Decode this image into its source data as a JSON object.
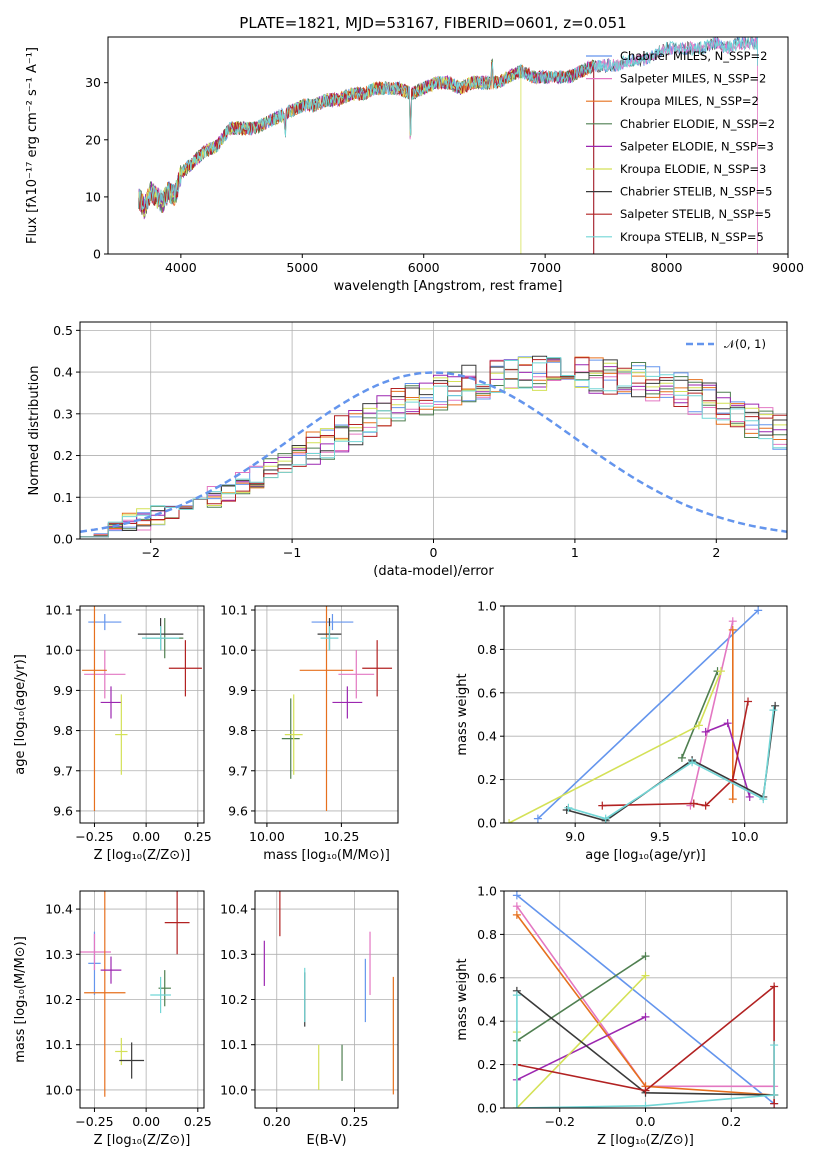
{
  "colors": [
    "#6495ed",
    "#e377c2",
    "#e6701e",
    "#4f7f50",
    "#9c27b0",
    "#d4e157",
    "#3a3a3a",
    "#b22222",
    "#72d6d6"
  ],
  "chart_data": [
    {
      "type": "line",
      "title": "PLATE=1821, MJD=53167, FIBERID=0601, z=0.051",
      "xlabel": "wavelength [Angstrom, rest frame]",
      "ylabel": "Flux [fλ10⁻¹⁷ erg cm⁻² s⁻¹ A⁻¹]",
      "xlim": [
        3400,
        9000
      ],
      "ylim": [
        0,
        38
      ],
      "xticks": [
        "4000",
        "5000",
        "6000",
        "7000",
        "8000",
        "9000"
      ],
      "yticks": [
        "0",
        "10",
        "20",
        "30"
      ],
      "legend": [
        "Chabrier MILES, N_SSP=2",
        "Salpeter MILES, N_SSP=2",
        "Kroupa MILES, N_SSP=2",
        "Chabrier ELODIE, N_SSP=2",
        "Salpeter ELODIE, N_SSP=3",
        "Kroupa ELODIE, N_SSP=3",
        "Chabrier STELIB, N_SSP=5",
        "Salpeter STELIB, N_SSP=5",
        "Kroupa STELIB, N_SSP=5"
      ],
      "series_ranges": [
        [
          3650,
          8750
        ],
        [
          3650,
          8750
        ],
        [
          3650,
          7400
        ],
        [
          3650,
          7400
        ],
        [
          3650,
          7400
        ],
        [
          3650,
          6800
        ],
        [
          3650,
          8750
        ],
        [
          3650,
          7400
        ],
        [
          3650,
          8750
        ]
      ],
      "x": [
        3650,
        3700,
        3750,
        3800,
        3850,
        3900,
        3950,
        4000,
        4100,
        4200,
        4300,
        4400,
        4500,
        4600,
        4700,
        4800,
        4900,
        5000,
        5100,
        5200,
        5300,
        5400,
        5500,
        5600,
        5700,
        5800,
        5900,
        6000,
        6100,
        6200,
        6300,
        6400,
        6500,
        6600,
        6700,
        6800,
        6900,
        7000,
        7100,
        7200,
        7300,
        7400,
        7500,
        7600,
        7700,
        7800,
        7900,
        8000,
        8100,
        8200,
        8300,
        8400,
        8500,
        8600,
        8700,
        8750
      ],
      "y": [
        10,
        8,
        11,
        10,
        9,
        11,
        10,
        14,
        16,
        18,
        19,
        22,
        22,
        22,
        23,
        24,
        25,
        26,
        26,
        27,
        27,
        28,
        28,
        29,
        29,
        29,
        28,
        29,
        30,
        30,
        29,
        30,
        30,
        30,
        31,
        32,
        31,
        31,
        31,
        31,
        32,
        33,
        33,
        33,
        34,
        34,
        35,
        36,
        36,
        36,
        36,
        37,
        36,
        37,
        37,
        37
      ]
    },
    {
      "type": "line",
      "xlabel": "(data-model)/error",
      "ylabel": "Normed distribution",
      "xlim": [
        -2.5,
        2.5
      ],
      "ylim": [
        0,
        0.52
      ],
      "xticks": [
        "−2",
        "−1",
        "0",
        "1",
        "2"
      ],
      "yticks": [
        "0.0",
        "0.1",
        "0.2",
        "0.3",
        "0.4",
        "0.5"
      ],
      "legend": [
        "𝒩(0, 1)"
      ],
      "bin_width": 0.1,
      "bin_start": -2.5,
      "hist_base": [
        0.018,
        0.024,
        0.03,
        0.038,
        0.046,
        0.055,
        0.065,
        0.076,
        0.089,
        0.102,
        0.117,
        0.133,
        0.149,
        0.166,
        0.183,
        0.2,
        0.218,
        0.236,
        0.253,
        0.27,
        0.286,
        0.302,
        0.316,
        0.33,
        0.342,
        0.354,
        0.363,
        0.372,
        0.379,
        0.385,
        0.39,
        0.393,
        0.396,
        0.397,
        0.397,
        0.396,
        0.393,
        0.39,
        0.385,
        0.379,
        0.372,
        0.363,
        0.354,
        0.342,
        0.33,
        0.316,
        0.302,
        0.286,
        0.27,
        0.253,
        0.236,
        0.218,
        0.2,
        0.183,
        0.166,
        0.149,
        0.133,
        0.117,
        0.102,
        0.089,
        0.076,
        0.065,
        0.055,
        0.046,
        0.038,
        0.03,
        0.024,
        0.018,
        0.014,
        0.011,
        0.008,
        0.006,
        0.004,
        0.003,
        0.002,
        0.001,
        0.001,
        0.001,
        0.001,
        0.001,
        0.001,
        0.001,
        0.001,
        0.001,
        0.001,
        0.001,
        0.001,
        0.001,
        0.001,
        0.001,
        0.001,
        0.001,
        0.001,
        0.001,
        0.001,
        0.001,
        0.001,
        0.001,
        0.001,
        0.001
      ]
    },
    {
      "type": "scatter",
      "xlabel": "Z [log₁₀(Z/Z⊙)]",
      "ylabel": "age  [log₁₀(age/yr)]",
      "xlim": [
        -0.32,
        0.28
      ],
      "ylim": [
        9.57,
        10.11
      ],
      "xticks": [
        "−0.25",
        "0.00",
        "0.25"
      ],
      "yticks": [
        "9.6",
        "9.7",
        "9.8",
        "9.9",
        "10.0",
        "10.1"
      ],
      "points": [
        [
          -0.2,
          10.07,
          0.08,
          0.02
        ],
        [
          -0.2,
          9.94,
          0.1,
          0.06
        ],
        [
          -0.25,
          9.95,
          0.06,
          0.35
        ],
        [
          0.09,
          10.03,
          0.09,
          0.05
        ],
        [
          -0.17,
          9.87,
          0.05,
          0.04
        ],
        [
          -0.12,
          9.79,
          0.03,
          0.1
        ],
        [
          0.07,
          10.04,
          0.11,
          0.04
        ],
        [
          0.19,
          9.955,
          0.08,
          0.07
        ],
        [
          0.07,
          10.03,
          0.09,
          0.03
        ]
      ]
    },
    {
      "type": "scatter",
      "xlabel": "mass [log₁₀(M/M⊙)]",
      "ylabel": "",
      "xlim": [
        9.96,
        10.44
      ],
      "ylim": [
        9.57,
        10.11
      ],
      "xticks": [
        "10.00",
        "10.25"
      ],
      "yticks": [
        "9.6",
        "9.7",
        "9.8",
        "9.9",
        "10.0",
        "10.1"
      ],
      "points": [
        [
          10.22,
          10.07,
          0.07,
          0.02
        ],
        [
          10.3,
          9.94,
          0.06,
          0.06
        ],
        [
          10.2,
          9.95,
          0.09,
          0.35
        ],
        [
          10.08,
          9.78,
          0.03,
          0.1
        ],
        [
          10.27,
          9.87,
          0.05,
          0.04
        ],
        [
          10.09,
          9.79,
          0.03,
          0.1
        ],
        [
          10.21,
          10.04,
          0.04,
          0.04
        ],
        [
          10.37,
          9.955,
          0.05,
          0.07
        ],
        [
          10.21,
          10.03,
          0.03,
          0.03
        ]
      ]
    },
    {
      "type": "line",
      "xlabel": "age  [log₁₀(age/yr)]",
      "ylabel": "mass weight",
      "xlim": [
        8.58,
        10.25
      ],
      "ylim": [
        0,
        1
      ],
      "xticks": [
        "9.0",
        "9.5",
        "10.0"
      ],
      "yticks": [
        "0.0",
        "0.2",
        "0.4",
        "0.6",
        "0.8",
        "1.0"
      ],
      "series": [
        {
          "values": [
            [
              8.78,
              0.02
            ],
            [
              10.08,
              0.98
            ]
          ]
        },
        {
          "values": [
            [
              9.68,
              0.08
            ],
            [
              9.93,
              0.93
            ]
          ]
        },
        {
          "values": [
            [
              9.93,
              0.11
            ],
            [
              9.93,
              0.89
            ]
          ]
        },
        {
          "values": [
            [
              9.63,
              0.3
            ],
            [
              9.84,
              0.7
            ]
          ]
        },
        {
          "values": [
            [
              9.77,
              0.42
            ],
            [
              9.9,
              0.46
            ],
            [
              10.03,
              0.12
            ]
          ]
        },
        {
          "values": [
            [
              8.61,
              0.0
            ],
            [
              9.73,
              0.45
            ],
            [
              9.86,
              0.7
            ]
          ]
        },
        {
          "values": [
            [
              8.95,
              0.06
            ],
            [
              9.18,
              0.01
            ],
            [
              9.69,
              0.29
            ],
            [
              10.11,
              0.12
            ],
            [
              10.18,
              0.54
            ]
          ]
        },
        {
          "values": [
            [
              9.16,
              0.08
            ],
            [
              9.7,
              0.09
            ],
            [
              9.77,
              0.08
            ],
            [
              9.93,
              0.2
            ],
            [
              10.02,
              0.56
            ]
          ]
        },
        {
          "values": [
            [
              8.96,
              0.07
            ],
            [
              9.18,
              0.02
            ],
            [
              9.69,
              0.28
            ],
            [
              10.11,
              0.11
            ],
            [
              10.17,
              0.52
            ]
          ]
        }
      ]
    },
    {
      "type": "scatter",
      "xlabel": "Z [log₁₀(Z/Z⊙)]",
      "ylabel": "mass [log₁₀(M/M⊙)]",
      "xlim": [
        -0.32,
        0.28
      ],
      "ylim": [
        9.96,
        10.44
      ],
      "xticks": [
        "−0.25",
        "0.00",
        "0.25"
      ],
      "yticks": [
        "10.0",
        "10.1",
        "10.2",
        "10.3",
        "10.4"
      ],
      "points": [
        [
          -0.25,
          10.28,
          0.03,
          0.07
        ],
        [
          -0.25,
          10.305,
          0.08,
          0.04
        ],
        [
          -0.2,
          10.215,
          0.1,
          0.23
        ],
        [
          0.09,
          10.225,
          0.03,
          0.04
        ],
        [
          -0.17,
          10.265,
          0.05,
          0.03
        ],
        [
          -0.12,
          10.085,
          0.03,
          0.03
        ],
        [
          -0.07,
          10.065,
          0.06,
          0.04
        ],
        [
          0.15,
          10.37,
          0.06,
          0.07
        ],
        [
          0.07,
          10.21,
          0.05,
          0.04
        ]
      ]
    },
    {
      "type": "scatter",
      "xlabel": "E(B-V)",
      "ylabel": "",
      "xlim": [
        0.186,
        0.278
      ],
      "ylim": [
        9.96,
        10.44
      ],
      "xticks": [
        "0.20",
        "0.25"
      ],
      "yticks": [
        "10.0",
        "10.1",
        "10.2",
        "10.3",
        "10.4"
      ],
      "points": [
        [
          0.257,
          10.22,
          0,
          0.07
        ],
        [
          0.26,
          10.28,
          0,
          0.07
        ],
        [
          0.275,
          10.12,
          0,
          0.13
        ],
        [
          0.242,
          10.06,
          0,
          0.04
        ],
        [
          0.192,
          10.28,
          0,
          0.05
        ],
        [
          0.227,
          10.05,
          0,
          0.05
        ],
        [
          0.218,
          10.2,
          0,
          0.06
        ],
        [
          0.202,
          10.39,
          0,
          0.05
        ],
        [
          0.218,
          10.21,
          0,
          0.06
        ]
      ]
    },
    {
      "type": "line",
      "xlabel": "Z [log₁₀(Z/Z⊙)]",
      "ylabel": "mass weight",
      "xlim": [
        -0.33,
        0.33
      ],
      "ylim": [
        0,
        1
      ],
      "xticks": [
        "−0.2",
        "0.0",
        "0.2"
      ],
      "yticks": [
        "0.0",
        "0.2",
        "0.4",
        "0.6",
        "0.8",
        "1.0"
      ],
      "series": [
        {
          "values": [
            [
              -0.3,
              0.98
            ],
            [
              0.3,
              0.02
            ]
          ]
        },
        {
          "values": [
            [
              -0.3,
              0.93
            ],
            [
              0.0,
              0.1
            ],
            [
              0.3,
              0.1
            ]
          ]
        },
        {
          "values": [
            [
              -0.3,
              0.89
            ],
            [
              0.0,
              0.1
            ],
            [
              0.3,
              0.06
            ]
          ]
        },
        {
          "values": [
            [
              -0.3,
              0.31
            ],
            [
              0.0,
              0.7
            ]
          ]
        },
        {
          "values": [
            [
              -0.3,
              0.13
            ],
            [
              0.0,
              0.42
            ]
          ]
        },
        {
          "values": [
            [
              -0.3,
              0.35
            ],
            [
              -0.3,
              0.0
            ],
            [
              0.0,
              0.61
            ]
          ]
        },
        {
          "values": [
            [
              -0.3,
              0.54
            ],
            [
              0.0,
              0.07
            ],
            [
              0.3,
              0.06
            ]
          ]
        },
        {
          "values": [
            [
              -0.3,
              0.2
            ],
            [
              0.0,
              0.08
            ],
            [
              0.3,
              0.56
            ],
            [
              0.3,
              0.02
            ]
          ]
        },
        {
          "values": [
            [
              -0.3,
              0.52
            ],
            [
              -0.3,
              0.0
            ],
            [
              0.0,
              0.01
            ],
            [
              0.3,
              0.06
            ],
            [
              0.3,
              0.29
            ]
          ]
        }
      ]
    }
  ]
}
